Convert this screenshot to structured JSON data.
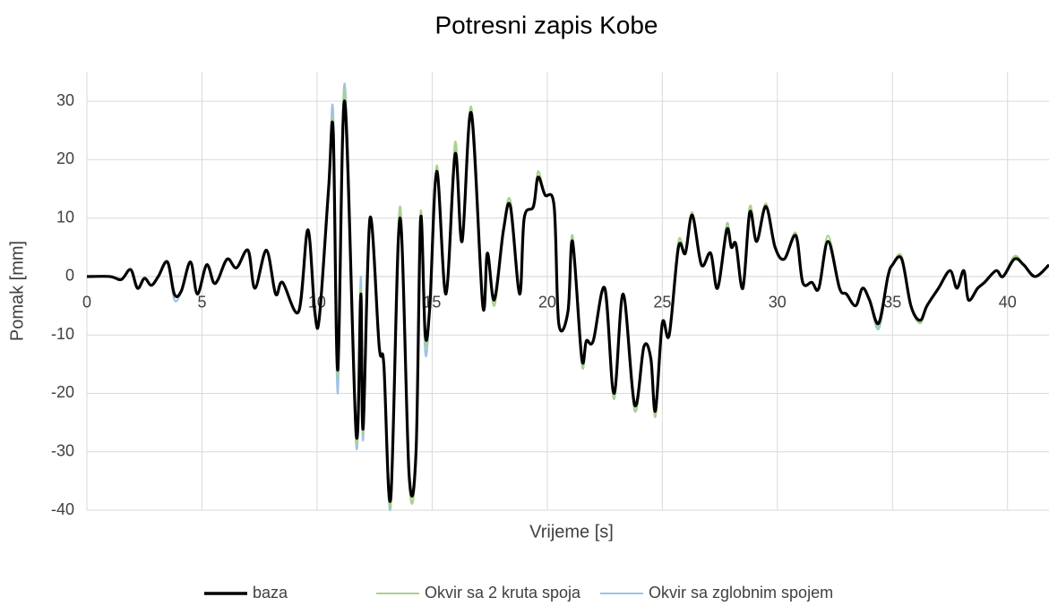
{
  "chart_data": {
    "type": "line",
    "title": "Potresni zapis Kobe",
    "xlabel": "Vrijeme [s]",
    "ylabel": "Pomak [mm]",
    "x": [
      0,
      1,
      1.5,
      1.9,
      2.2,
      2.5,
      2.8,
      3.1,
      3.5,
      3.8,
      4.1,
      4.5,
      4.8,
      5.2,
      5.5,
      5.7,
      6.1,
      6.5,
      7,
      7.3,
      7.8,
      8.2,
      8.5,
      9.2,
      9.6,
      9.9,
      10.1,
      10.5,
      10.7,
      10.9,
      11.2,
      11.7,
      11.9,
      12.0,
      12.3,
      12.7,
      12.9,
      13.2,
      13.6,
      14.0,
      14.3,
      14.5,
      14.7,
      14.9,
      15.2,
      15.6,
      16.0,
      16.3,
      16.7,
      17.2,
      17.4,
      17.7,
      18.1,
      18.4,
      18.8,
      19.0,
      19.4,
      19.6,
      19.9,
      20.3,
      20.5,
      20.9,
      21.1,
      21.5,
      21.7,
      22.0,
      22.5,
      22.9,
      23.3,
      23.8,
      24.2,
      24.5,
      24.7,
      25.0,
      25.3,
      25.7,
      26.0,
      26.3,
      26.7,
      27.1,
      27.4,
      27.8,
      28.0,
      28.2,
      28.5,
      28.8,
      29.1,
      29.5,
      29.9,
      30.3,
      30.8,
      31.1,
      31.5,
      31.8,
      32.2,
      32.7,
      33.0,
      33.4,
      33.7,
      34.0,
      34.4,
      34.8,
      35.0,
      35.4,
      35.8,
      36.2,
      36.5,
      37.0,
      37.5,
      37.8,
      38.1,
      38.3,
      38.7,
      39.0,
      39.5,
      39.8,
      40.3,
      40.7,
      41.2,
      41.8
    ],
    "series": [
      {
        "name": "baza",
        "color": "#000000",
        "values": [
          0,
          0,
          -0.5,
          1.2,
          -2,
          -0.3,
          -1.5,
          0,
          2.5,
          -3,
          -2.5,
          2.5,
          -3,
          2,
          -1,
          -0.5,
          3,
          1.5,
          4.5,
          -2,
          4.5,
          -3,
          -1,
          -6,
          8,
          -6,
          -7,
          15,
          25,
          -16,
          30,
          -27,
          -3,
          -26,
          10,
          -12,
          -15,
          -38,
          10,
          -34,
          -30,
          10,
          -10,
          -5,
          18,
          -3,
          21,
          6,
          28,
          -5,
          4,
          -4,
          8,
          12,
          -3,
          10,
          12,
          17,
          14,
          12,
          -8,
          -6,
          6,
          -14,
          -11,
          -11,
          -2,
          -20,
          -3,
          -22,
          -12,
          -14,
          -23,
          -8,
          -10,
          5,
          4,
          10.5,
          2,
          4,
          -2,
          8,
          5,
          5.5,
          -2,
          11,
          6,
          12,
          5,
          3,
          7,
          -1,
          -1,
          -2,
          6,
          -2,
          -3,
          -5,
          -2,
          -4,
          -8,
          0,
          2,
          3,
          -5,
          -7.5,
          -5,
          -2,
          1,
          -2,
          1,
          -4,
          -2,
          -1,
          1,
          0,
          3,
          2,
          0,
          2
        ]
      },
      {
        "name": "Okvir sa 2 kruta spoja",
        "color": "#a9d18e",
        "values": [
          0,
          0,
          -0.5,
          1.2,
          -2,
          -0.3,
          -1.5,
          0,
          2.5,
          -3,
          -2.5,
          2.5,
          -3,
          2,
          -1,
          -0.5,
          3,
          1.5,
          4.5,
          -2,
          4.5,
          -3,
          -1,
          -6,
          8,
          -6,
          -7,
          15,
          26,
          -17,
          32,
          -28,
          -2,
          -27,
          10,
          -12,
          -15,
          -39,
          12,
          -35,
          -31,
          11,
          -11,
          -5,
          19,
          -3,
          23,
          6,
          29,
          -5,
          4,
          -5,
          8,
          13,
          -3,
          10,
          12,
          18,
          14,
          12,
          -8,
          -6,
          7,
          -15,
          -11,
          -11,
          -2,
          -21,
          -3,
          -23,
          -12,
          -14,
          -24,
          -8,
          -10,
          6,
          4,
          11,
          2,
          4,
          -2,
          9,
          5,
          5.5,
          -2,
          12,
          6,
          12.5,
          5,
          3,
          7.5,
          -1,
          -1,
          -2,
          7,
          -2,
          -3,
          -5,
          -2,
          -4,
          -8.5,
          0,
          2,
          3.5,
          -5,
          -8,
          -5,
          -2,
          1,
          -2,
          1,
          -4,
          -2,
          -1,
          1,
          0,
          3.5,
          2,
          0,
          2
        ]
      },
      {
        "name": "Okvir sa zglobnim spojem",
        "color": "#9dc3e6",
        "values": [
          0,
          0,
          -0.5,
          1.2,
          -2,
          -0.3,
          -1.5,
          0,
          2.5,
          -4,
          -2.5,
          2.5,
          -3,
          2,
          -1,
          -0.5,
          3,
          1.5,
          4.5,
          -2,
          4.5,
          -3,
          -1,
          -6,
          8,
          -6,
          -7,
          15,
          28,
          -20,
          33,
          -29,
          0,
          -28,
          10,
          -12,
          -15,
          -39.5,
          11,
          -34,
          -30,
          10,
          -13,
          -5,
          18,
          -3,
          22,
          6,
          28,
          -5,
          4,
          -4,
          8,
          12,
          -3,
          10,
          12,
          17,
          14,
          12,
          -8,
          -6,
          6,
          -14,
          -11,
          -11,
          -2,
          -20,
          -3,
          -23,
          -12,
          -14,
          -23,
          -8,
          -10,
          5,
          4,
          10.5,
          2,
          4,
          -2,
          8,
          5,
          5.5,
          -2,
          11,
          6,
          12,
          5,
          3,
          7,
          -1,
          -1,
          -2,
          6,
          -2,
          -3,
          -5,
          -2,
          -4,
          -9,
          0,
          2,
          3,
          -5,
          -7.5,
          -5,
          -2,
          1,
          -2,
          1,
          -4,
          -2,
          -1,
          1,
          0,
          3,
          2,
          0,
          2
        ]
      }
    ],
    "xlim": [
      0,
      41.8
    ],
    "xticks": [
      0,
      5,
      10,
      15,
      20,
      25,
      30,
      35,
      40
    ],
    "ylim": [
      -40,
      35
    ],
    "yticks": [
      -40,
      -30,
      -20,
      -10,
      0,
      10,
      20,
      30
    ],
    "grid": true,
    "legend": "bottom"
  }
}
